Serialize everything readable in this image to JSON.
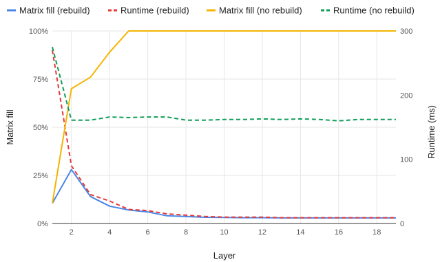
{
  "chart_data": {
    "type": "line",
    "xlabel": "Layer",
    "ylabel_left": "Matrix fill",
    "ylabel_right": "Runtime (ms)",
    "x_range": [
      1,
      19
    ],
    "x_ticks": [
      2,
      4,
      6,
      8,
      10,
      12,
      14,
      16,
      18
    ],
    "y_left_range": [
      0,
      100
    ],
    "y_left_ticks": [
      0,
      25,
      50,
      75,
      100
    ],
    "y_left_tick_labels": [
      "0%",
      "25%",
      "50%",
      "75%",
      "100%"
    ],
    "y_right_range": [
      0,
      300
    ],
    "y_right_ticks": [
      0,
      100,
      200,
      300
    ],
    "grid": true,
    "legend_position": "top",
    "series": [
      {
        "name": "Matrix fill (rebuild)",
        "axis": "left",
        "style": "solid",
        "color": "#4a86e8",
        "x": [
          1,
          2,
          3,
          4,
          5,
          6,
          7,
          8,
          9,
          10,
          11,
          12,
          13,
          14,
          15,
          16,
          17,
          18,
          19
        ],
        "values": [
          10.5,
          28,
          14,
          9,
          7,
          6,
          4,
          3.6,
          3.2,
          3.1,
          3,
          3,
          2.9,
          2.9,
          2.9,
          2.9,
          2.9,
          2.9,
          2.9
        ]
      },
      {
        "name": "Runtime (rebuild)",
        "axis": "right",
        "style": "dashed",
        "color": "#e53935",
        "x": [
          1,
          2,
          3,
          4,
          5,
          6,
          7,
          8,
          9,
          10,
          11,
          12,
          13,
          14,
          15,
          16,
          17,
          18,
          19
        ],
        "values": [
          270,
          90,
          45,
          35,
          22,
          20,
          15,
          13,
          11,
          10,
          10,
          10,
          9,
          9,
          9,
          9,
          9,
          9,
          9
        ]
      },
      {
        "name": "Matrix fill (no rebuild)",
        "axis": "left",
        "style": "solid",
        "color": "#f4b400",
        "x": [
          1,
          2,
          3,
          4,
          5,
          6,
          7,
          8,
          9,
          10,
          11,
          12,
          13,
          14,
          15,
          16,
          17,
          18,
          19
        ],
        "values": [
          10.5,
          70,
          76,
          89,
          100,
          100,
          100,
          100,
          100,
          100,
          100,
          100,
          100,
          100,
          100,
          100,
          100,
          100,
          100
        ]
      },
      {
        "name": "Runtime (no rebuild)",
        "axis": "right",
        "style": "dashed",
        "color": "#0f9d58",
        "x": [
          1,
          2,
          3,
          4,
          5,
          6,
          7,
          8,
          9,
          10,
          11,
          12,
          13,
          14,
          15,
          16,
          17,
          18,
          19
        ],
        "values": [
          275,
          161,
          161,
          166,
          165,
          166,
          166,
          161,
          161,
          162,
          162,
          163,
          162,
          163,
          162,
          160,
          162,
          162,
          162
        ]
      }
    ]
  }
}
